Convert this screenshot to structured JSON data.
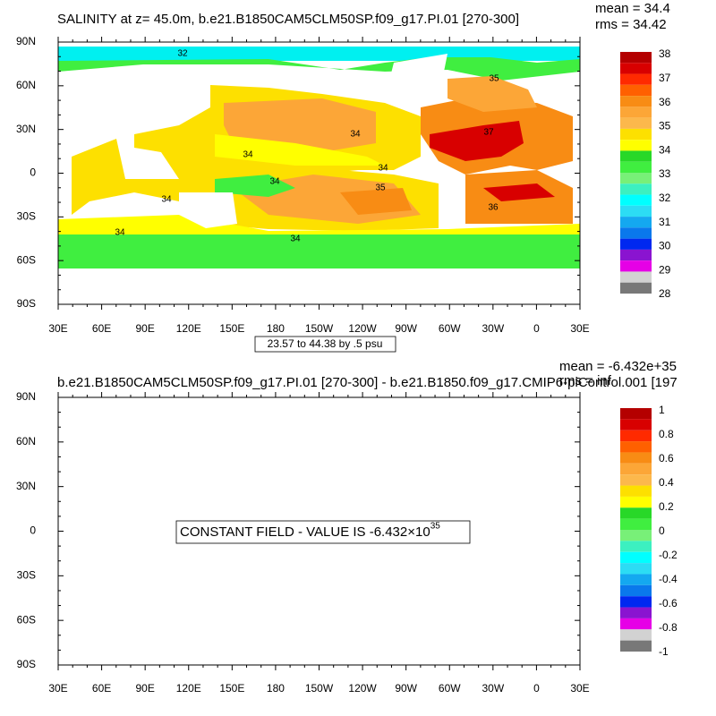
{
  "panels": [
    {
      "title": "SALINITY at z=  45.0m, b.e21.B1850CAM5CLM50SP.f09_g17.PI.01 [270-300]",
      "stats": [
        "mean = 34.4",
        "rms = 34.42"
      ],
      "lat_labels": [
        "90N",
        "60N",
        "30N",
        "0",
        "30S",
        "60S",
        "90S"
      ],
      "lon_labels": [
        "30E",
        "60E",
        "90E",
        "120E",
        "150E",
        "180",
        "150W",
        "120W",
        "90W",
        "60W",
        "30W",
        "0",
        "30E"
      ],
      "colorbar_labels": [
        "38",
        "37",
        "36",
        "35",
        "34",
        "33",
        "32",
        "31",
        "30",
        "29",
        "28"
      ],
      "contour_labels": [
        "32",
        "35",
        "34",
        "37",
        "34",
        "34",
        "34",
        "35",
        "34",
        "36",
        "34",
        "34"
      ],
      "info": "23.57 to 44.38 by .5 psu"
    },
    {
      "title": "b.e21.B1850CAM5CLM50SP.f09_g17.PI.01 [270-300] - b.e21.B1850.f09_g17.CMIP6-piControl.001 [197",
      "stats": [
        "mean = -6.432e+35",
        "rms = inf"
      ],
      "lat_labels": [
        "90N",
        "60N",
        "30N",
        "0",
        "30S",
        "60S",
        "90S"
      ],
      "lon_labels": [
        "30E",
        "60E",
        "90E",
        "120E",
        "150E",
        "180",
        "150W",
        "120W",
        "90W",
        "60W",
        "30W",
        "0",
        "30E"
      ],
      "colorbar_labels": [
        "1",
        "0.8",
        "0.6",
        "0.4",
        "0.2",
        "0",
        "-0.2",
        "-0.4",
        "-0.6",
        "-0.8",
        "-1"
      ],
      "message": "CONSTANT FIELD - VALUE IS -6.432×10",
      "message_exponent": "35"
    }
  ],
  "colorbar_colors": [
    "#b40000",
    "#d80000",
    "#ff2a00",
    "#ff6000",
    "#f88c14",
    "#fca637",
    "#fcb84c",
    "#fde000",
    "#ffff00",
    "#28d828",
    "#40ee40",
    "#78f078",
    "#3cf0c0",
    "#00ffff",
    "#2cdcf4",
    "#14a8f0",
    "#0a78ec",
    "#0028f0",
    "#8a14d0",
    "#e600e6",
    "#d2d2d2",
    "#787878"
  ]
}
